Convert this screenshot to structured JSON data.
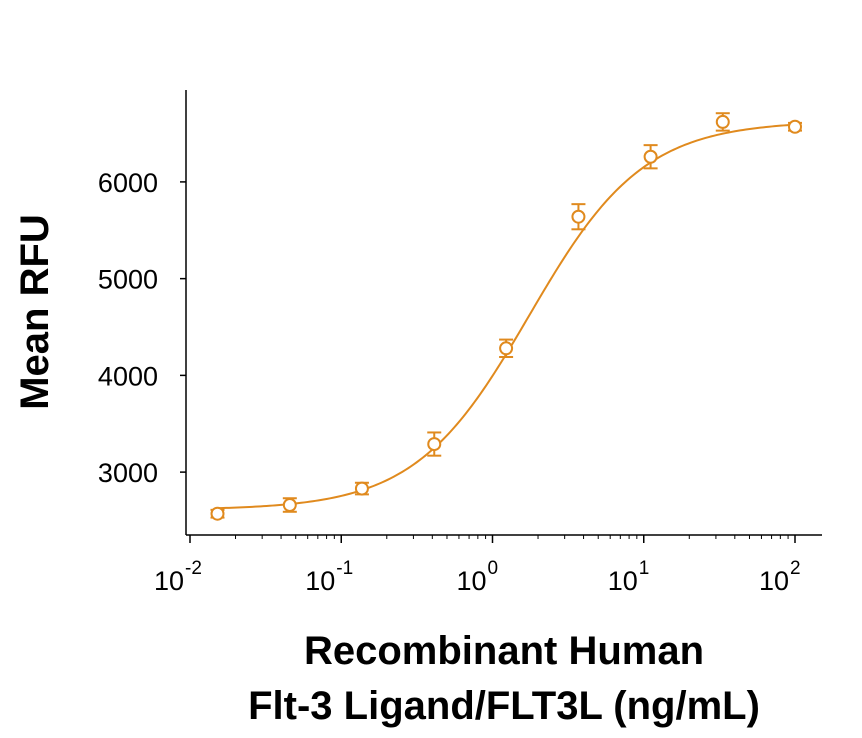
{
  "chart_data": {
    "type": "scatter",
    "title": "",
    "xlabel": [
      "Recombinant Human",
      "Flt-3 Ligand/FLT3L (ng/mL)"
    ],
    "ylabel": "Mean RFU",
    "x_scale": "log",
    "xlim": [
      0.01,
      100
    ],
    "ylim": [
      2350,
      6950
    ],
    "x_ticks": [
      {
        "base": "10",
        "exp": "-2",
        "value": 0.01
      },
      {
        "base": "10",
        "exp": "-1",
        "value": 0.1
      },
      {
        "base": "10",
        "exp": "0",
        "value": 1
      },
      {
        "base": "10",
        "exp": "1",
        "value": 10
      },
      {
        "base": "10",
        "exp": "2",
        "value": 100
      }
    ],
    "y_ticks": [
      "3000",
      "4000",
      "5000",
      "6000"
    ],
    "grid": false,
    "legend": "none",
    "color": "#E08A1E",
    "series": [
      {
        "x": [
          0.0152,
          0.0457,
          0.137,
          0.412,
          1.23,
          3.7,
          11.1,
          33.3,
          100
        ],
        "y": [
          2570,
          2660,
          2830,
          3290,
          4280,
          5640,
          6260,
          6620,
          6570
        ],
        "error": [
          40,
          70,
          60,
          120,
          90,
          130,
          120,
          90,
          40
        ]
      }
    ],
    "fit": {
      "model": "4PL",
      "bottom": 2610,
      "top": 6630,
      "ec50": 1.75,
      "hill": 1.15
    }
  }
}
